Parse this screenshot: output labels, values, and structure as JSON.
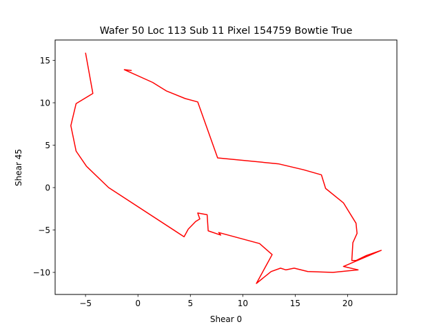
{
  "chart_data": {
    "type": "line",
    "title": "Wafer 50 Loc 113 Sub 11 Pixel 154759 Bowtie True",
    "xlabel": "Shear 0",
    "ylabel": "Shear 45",
    "xlim": [
      -7.9,
      24.7
    ],
    "ylim": [
      -12.6,
      17.4
    ],
    "xticks": [
      -5,
      0,
      5,
      10,
      15,
      20
    ],
    "xtick_labels": [
      "−5",
      "0",
      "5",
      "10",
      "15",
      "20"
    ],
    "yticks": [
      -10,
      -5,
      0,
      5,
      10,
      15
    ],
    "ytick_labels": [
      "−10",
      "−5",
      "0",
      "5",
      "10",
      "15"
    ],
    "grid": false,
    "series": [
      {
        "color": "#ff0000",
        "x": [
          -5.0,
          -4.3,
          -5.9,
          -6.4,
          -5.9,
          -4.9,
          -2.8,
          4.4,
          4.8,
          5.5,
          5.9,
          5.7,
          6.6,
          6.7,
          7.9,
          7.7,
          11.6,
          12.8,
          11.3,
          12.7,
          13.6,
          14.1,
          14.9,
          16.2,
          18.6,
          21.0,
          19.6,
          23.2,
          21.8,
          20.8,
          20.4,
          20.5,
          20.9,
          20.8,
          19.6,
          17.9,
          17.5,
          15.8,
          13.4,
          7.6,
          5.7,
          4.5,
          2.7,
          1.4,
          -1.3,
          -0.6
        ],
        "y": [
          15.9,
          11.1,
          9.9,
          7.3,
          4.3,
          2.5,
          0.0,
          -5.8,
          -4.9,
          -4.0,
          -3.7,
          -3.0,
          -3.2,
          -5.1,
          -5.6,
          -5.3,
          -6.6,
          -7.9,
          -11.3,
          -9.9,
          -9.5,
          -9.7,
          -9.5,
          -9.9,
          -10.0,
          -9.7,
          -9.3,
          -7.4,
          -8.0,
          -8.6,
          -8.6,
          -6.5,
          -5.4,
          -4.2,
          -1.8,
          -0.1,
          1.5,
          2.1,
          2.8,
          3.5,
          10.1,
          10.5,
          11.4,
          12.4,
          13.9,
          13.8
        ]
      }
    ]
  }
}
